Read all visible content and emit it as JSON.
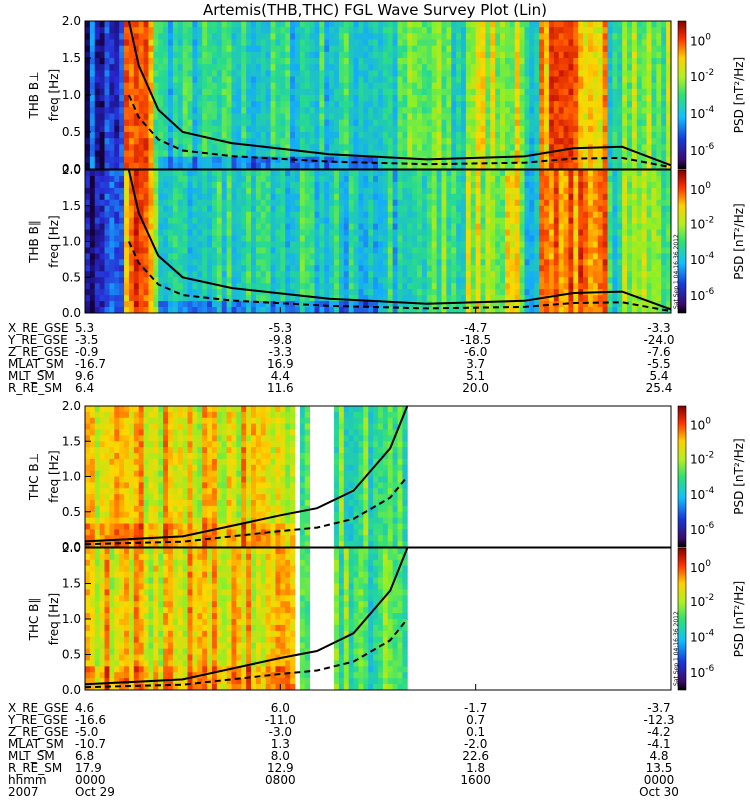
{
  "title": "Artemis(THB,THC) FGL Wave Survey Plot (Lin)",
  "colorbar": {
    "label": "PSD [nT²/Hz]",
    "ticks": [
      {
        "base": "10",
        "exp": "0"
      },
      {
        "base": "10",
        "exp": "-2"
      },
      {
        "base": "10",
        "exp": "-4"
      },
      {
        "base": "10",
        "exp": "-6"
      }
    ]
  },
  "stamp": "Sat Sep 1 04:16:36 2012",
  "panels": [
    {
      "probe_label": "THB B⊥",
      "y_label": "freq [Hz]"
    },
    {
      "probe_label": "THB B∥",
      "y_label": "freq [Hz]"
    },
    {
      "probe_label": "THC B⊥",
      "y_label": "freq [Hz]"
    },
    {
      "probe_label": "THC B∥",
      "y_label": "freq [Hz]"
    }
  ],
  "y_ticks": [
    "0.0",
    "0.5",
    "1.0",
    "1.5",
    "2.0"
  ],
  "thb_ephemeris": {
    "rows": [
      {
        "label": "X_RE_GSE",
        "values": [
          "5.3",
          "-5.3",
          "-4.7",
          "-3.3"
        ]
      },
      {
        "label": "Y_RE_GSE",
        "values": [
          "-3.5",
          "-9.8",
          "-18.5",
          "-24.0"
        ]
      },
      {
        "label": "Z_RE_GSE",
        "values": [
          "-0.9",
          "-3.3",
          "-6.0",
          "-7.6"
        ]
      },
      {
        "label": "MLAT_SM",
        "values": [
          "-16.7",
          "16.9",
          "3.7",
          "-5.5"
        ]
      },
      {
        "label": "MLT_SM",
        "values": [
          "9.6",
          "4.4",
          "5.1",
          "5.4"
        ]
      },
      {
        "label": "R_RE_SM",
        "values": [
          "6.4",
          "11.6",
          "20.0",
          "25.4"
        ]
      }
    ]
  },
  "thc_ephemeris": {
    "rows": [
      {
        "label": "X_RE_GSE",
        "values": [
          "4.6",
          "6.0",
          "-1.7",
          "-3.7"
        ]
      },
      {
        "label": "Y_RE_GSE",
        "values": [
          "-16.6",
          "-11.0",
          "0.7",
          "-12.3"
        ]
      },
      {
        "label": "Z_RE_GSE",
        "values": [
          "-5.0",
          "-3.0",
          "0.1",
          "-4.2"
        ]
      },
      {
        "label": "MLAT_SM",
        "values": [
          "-10.7",
          "1.3",
          "-2.0",
          "-4.1"
        ]
      },
      {
        "label": "MLT_SM",
        "values": [
          "6.8",
          "8.0",
          "22.6",
          "4.8"
        ]
      },
      {
        "label": "R_RE_SM",
        "values": [
          "17.9",
          "12.9",
          "1.8",
          "13.5"
        ]
      },
      {
        "label": "hhmm",
        "values": [
          "0000",
          "0800",
          "1600",
          "0000"
        ]
      },
      {
        "label": "2007",
        "values": [
          "Oct 29",
          "",
          "",
          "Oct 30"
        ]
      }
    ]
  },
  "chart_data": {
    "type": "heatmap",
    "title": "Artemis(THB,THC) FGL Wave Survey Plot (Lin)",
    "xlabel": "hhmm",
    "ylabel": "freq [Hz]",
    "ylim": [
      0,
      2.0
    ],
    "x_ticks": [
      "0000",
      "0800",
      "1600",
      "0000"
    ],
    "x_dates": [
      "2007 Oct 29",
      "",
      "",
      "Oct 30"
    ],
    "colorbar_range_log10": [
      -6.5,
      1.5
    ],
    "colorbar_scale": "log",
    "colormap": "rainbow",
    "colors": {
      "low": "#2a0a5a",
      "mid_low": "#1060ff",
      "mid": "#40ff40",
      "mid_high": "#ffcc00",
      "high": "#e00000",
      "top": "#5a0000"
    },
    "thb_gyro_line_hz": [
      {
        "t_hours": 1.8,
        "f": 2.0
      },
      {
        "t_hours": 2.2,
        "f": 1.4
      },
      {
        "t_hours": 3.0,
        "f": 0.8
      },
      {
        "t_hours": 4.0,
        "f": 0.5
      },
      {
        "t_hours": 6.0,
        "f": 0.35
      },
      {
        "t_hours": 10.0,
        "f": 0.2
      },
      {
        "t_hours": 14.0,
        "f": 0.13
      },
      {
        "t_hours": 18.0,
        "f": 0.17
      },
      {
        "t_hours": 20.0,
        "f": 0.28
      },
      {
        "t_hours": 22.0,
        "f": 0.3
      },
      {
        "t_hours": 24.0,
        "f": 0.05
      }
    ],
    "thc_gyro_line_hz": [
      {
        "t_hours": 0.0,
        "f": 0.08
      },
      {
        "t_hours": 4.0,
        "f": 0.15
      },
      {
        "t_hours": 6.0,
        "f": 0.3
      },
      {
        "t_hours": 8.0,
        "f": 0.45
      },
      {
        "t_hours": 9.5,
        "f": 0.55
      },
      {
        "t_hours": 11.0,
        "f": 0.8
      },
      {
        "t_hours": 12.5,
        "f": 1.4
      },
      {
        "t_hours": 13.2,
        "f": 2.0
      }
    ],
    "thc_data_gaps_hours": [
      [
        8.6,
        8.9
      ],
      [
        9.3,
        10.2
      ],
      [
        13.3,
        24.0
      ]
    ]
  }
}
